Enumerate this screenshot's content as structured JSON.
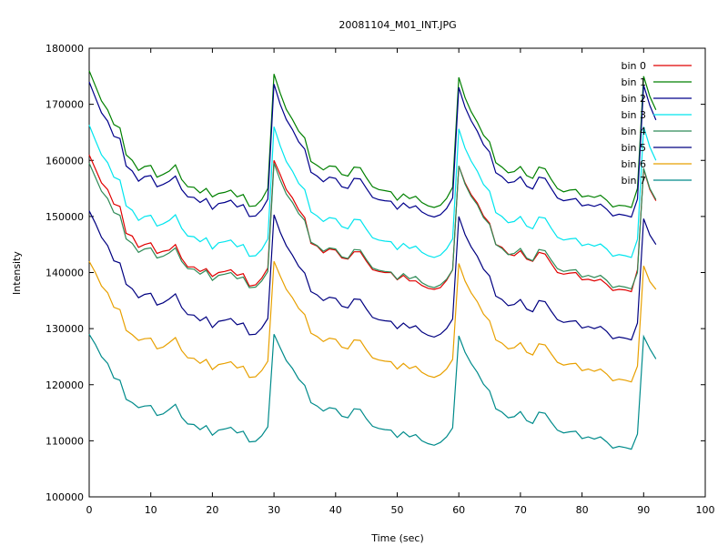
{
  "chart_data": {
    "type": "line",
    "title": "20081104_M01_INT.JPG",
    "xlabel": "Time (sec)",
    "ylabel": "Intensity",
    "xlim": [
      0,
      100
    ],
    "ylim": [
      100000,
      180000
    ],
    "xticks": [
      0,
      10,
      20,
      30,
      40,
      50,
      60,
      70,
      80,
      90,
      100
    ],
    "yticks": [
      100000,
      110000,
      120000,
      130000,
      140000,
      150000,
      160000,
      170000,
      180000
    ],
    "grid": false,
    "legend_position": "top-right",
    "x": [
      0,
      1,
      2,
      3,
      4,
      5,
      6,
      7,
      8,
      9,
      10,
      11,
      12,
      13,
      14,
      15,
      16,
      17,
      18,
      19,
      20,
      21,
      22,
      23,
      24,
      25,
      26,
      27,
      28,
      29,
      30,
      31,
      32,
      33,
      34,
      35,
      36,
      37,
      38,
      39,
      40,
      41,
      42,
      43,
      44,
      45,
      46,
      47,
      48,
      49,
      50,
      51,
      52,
      53,
      54,
      55,
      56,
      57,
      58,
      59,
      60,
      61,
      62,
      63,
      64,
      65,
      66,
      67,
      68,
      69,
      70,
      71,
      72,
      73,
      74,
      75,
      76,
      77,
      78,
      79,
      80,
      81,
      82,
      83,
      84,
      85,
      86,
      87,
      88,
      89,
      90,
      91,
      92
    ],
    "series": [
      {
        "name": "bin 0",
        "color": "#e00000",
        "values": [
          161000,
          158500,
          156000,
          154800,
          152200,
          151800,
          147000,
          146500,
          144500,
          145000,
          145300,
          143400,
          143800,
          144000,
          145000,
          142500,
          141000,
          141000,
          140200,
          140700,
          139300,
          140000,
          140200,
          140500,
          139500,
          139800,
          137600,
          137800,
          139000,
          140800,
          160000,
          157500,
          154800,
          153300,
          151200,
          149800,
          145200,
          144700,
          143500,
          144200,
          144000,
          142600,
          142400,
          143700,
          143700,
          142000,
          140500,
          140200,
          140000,
          140000,
          138700,
          139500,
          138500,
          138500,
          137700,
          137200,
          137000,
          137300,
          138600,
          140500,
          159000,
          156000,
          153900,
          152400,
          150100,
          148800,
          145000,
          144500,
          143300,
          143000,
          143900,
          142400,
          142000,
          143600,
          143300,
          141600,
          140000,
          139700,
          139900,
          140000,
          138700,
          138800,
          138500,
          138800,
          137900,
          136800,
          137000,
          136900,
          136600,
          140500,
          158400,
          154800,
          152800
        ]
      },
      {
        "name": "bin 1",
        "color": "#008000",
        "values": [
          176000,
          173300,
          170600,
          169000,
          166400,
          165800,
          161000,
          160000,
          158200,
          158900,
          159100,
          157000,
          157500,
          158100,
          159200,
          156600,
          155300,
          155200,
          154200,
          155000,
          153500,
          154100,
          154300,
          154700,
          153500,
          153900,
          151800,
          151900,
          153000,
          155000,
          175400,
          172000,
          169100,
          167300,
          165200,
          164000,
          159800,
          159100,
          158300,
          159000,
          158900,
          157500,
          157200,
          158800,
          158700,
          156900,
          155300,
          154800,
          154600,
          154400,
          152900,
          154000,
          153200,
          153600,
          152500,
          151900,
          151600,
          152000,
          153200,
          155200,
          174800,
          171200,
          168700,
          166800,
          164500,
          163300,
          159600,
          158800,
          157800,
          158000,
          158900,
          157300,
          156800,
          158800,
          158500,
          156600,
          155000,
          154400,
          154700,
          154800,
          153500,
          153700,
          153400,
          153800,
          152900,
          151700,
          152000,
          151900,
          151600,
          155000,
          175000,
          171400,
          169000
        ]
      },
      {
        "name": "bin 2",
        "color": "#00008b",
        "values": [
          174000,
          171200,
          168500,
          167000,
          164300,
          163900,
          159000,
          158100,
          156300,
          157100,
          157300,
          155300,
          155700,
          156300,
          157200,
          154800,
          153500,
          153400,
          152500,
          153200,
          151300,
          152300,
          152500,
          152900,
          151700,
          152100,
          150000,
          150100,
          151200,
          153100,
          173600,
          170000,
          167300,
          165500,
          163300,
          162000,
          157900,
          157200,
          156200,
          157000,
          156800,
          155300,
          155000,
          156800,
          156700,
          155000,
          153400,
          153000,
          152800,
          152700,
          151300,
          152400,
          151500,
          151900,
          150800,
          150200,
          149900,
          150300,
          151400,
          153300,
          173000,
          169500,
          167100,
          165200,
          162800,
          161500,
          157800,
          157100,
          156000,
          156200,
          157100,
          155400,
          154900,
          157000,
          156800,
          155000,
          153300,
          152800,
          153000,
          153200,
          151900,
          152100,
          151800,
          152200,
          151300,
          150100,
          150400,
          150200,
          149900,
          153100,
          173400,
          169800,
          167200
        ]
      },
      {
        "name": "bin 3",
        "color": "#00e5ee",
        "values": [
          166300,
          163600,
          161000,
          159600,
          157000,
          156500,
          151900,
          151100,
          149300,
          150000,
          150200,
          148300,
          148700,
          149300,
          150300,
          147900,
          146500,
          146400,
          145500,
          146200,
          144200,
          145300,
          145500,
          145800,
          144600,
          145000,
          142900,
          143000,
          144100,
          146000,
          166000,
          162600,
          159800,
          158100,
          155900,
          154800,
          150800,
          150100,
          149100,
          149800,
          149600,
          148200,
          147800,
          149500,
          149400,
          147700,
          146200,
          145800,
          145600,
          145500,
          144100,
          145200,
          144300,
          144700,
          143600,
          143000,
          142700,
          143100,
          144200,
          146000,
          165600,
          162200,
          159900,
          158100,
          155700,
          154500,
          150700,
          150000,
          148900,
          149100,
          150000,
          148300,
          147800,
          149900,
          149700,
          147900,
          146300,
          145800,
          146000,
          146100,
          144800,
          145100,
          144700,
          145100,
          144200,
          142900,
          143200,
          143000,
          142700,
          145900,
          166000,
          162400,
          160000
        ]
      },
      {
        "name": "bin 4",
        "color": "#2e8b57",
        "values": [
          159500,
          157000,
          154500,
          153200,
          150700,
          150200,
          146000,
          145200,
          143600,
          144200,
          144400,
          142600,
          142900,
          143500,
          144400,
          142000,
          140700,
          140600,
          139700,
          140400,
          138600,
          139500,
          139700,
          140000,
          138900,
          139200,
          137300,
          137400,
          138500,
          140200,
          159500,
          156500,
          154000,
          152500,
          150500,
          149300,
          145400,
          144800,
          143800,
          144400,
          144200,
          142800,
          142500,
          144100,
          144000,
          142300,
          140800,
          140400,
          140200,
          140100,
          138800,
          139800,
          138900,
          139300,
          138200,
          137600,
          137300,
          137800,
          138800,
          140500,
          159000,
          155800,
          153600,
          152100,
          149800,
          148600,
          145000,
          144300,
          143200,
          143400,
          144300,
          142600,
          142100,
          144100,
          143900,
          142200,
          140700,
          140200,
          140400,
          140500,
          139200,
          139500,
          139100,
          139500,
          138600,
          137300,
          137600,
          137400,
          137100,
          140000,
          158600,
          155000,
          153000
        ]
      },
      {
        "name": "bin 5",
        "color": "#000080",
        "values": [
          151000,
          148800,
          146300,
          144800,
          142100,
          141700,
          137900,
          137100,
          135500,
          136100,
          136300,
          134200,
          134600,
          135300,
          136200,
          133800,
          132500,
          132400,
          131400,
          132100,
          130200,
          131300,
          131500,
          131800,
          130700,
          131000,
          128900,
          129000,
          130100,
          131800,
          150300,
          147200,
          144800,
          143100,
          141100,
          139900,
          136600,
          136000,
          135000,
          135600,
          135400,
          134000,
          133700,
          135300,
          135200,
          133500,
          132000,
          131600,
          131400,
          131300,
          130000,
          131000,
          130100,
          130500,
          129400,
          128800,
          128500,
          129000,
          130000,
          131700,
          150000,
          146800,
          144600,
          142900,
          140600,
          139400,
          135800,
          135200,
          134100,
          134300,
          135200,
          133500,
          133000,
          135000,
          134800,
          133100,
          131600,
          131100,
          131300,
          131400,
          130100,
          130400,
          130000,
          130400,
          129500,
          128200,
          128500,
          128300,
          128000,
          131000,
          149600,
          146700,
          145000
        ]
      },
      {
        "name": "bin 6",
        "color": "#e8a000",
        "values": [
          142000,
          140000,
          137600,
          136400,
          133800,
          133400,
          129700,
          128900,
          127900,
          128200,
          128300,
          126400,
          126700,
          127500,
          128400,
          126100,
          124800,
          124700,
          123800,
          124500,
          122700,
          123600,
          123800,
          124100,
          123000,
          123300,
          121300,
          121400,
          122500,
          124200,
          142000,
          139400,
          137000,
          135500,
          133600,
          132500,
          129200,
          128600,
          127700,
          128300,
          128100,
          126700,
          126400,
          128000,
          127900,
          126200,
          124800,
          124400,
          124200,
          124100,
          122800,
          123800,
          122900,
          123300,
          122200,
          121600,
          121300,
          121800,
          122800,
          124500,
          141600,
          138500,
          136400,
          134800,
          132600,
          131400,
          128000,
          127400,
          126400,
          126600,
          127500,
          125800,
          125300,
          127300,
          127100,
          125500,
          124000,
          123500,
          123700,
          123800,
          122500,
          122800,
          122400,
          122800,
          121900,
          120700,
          121000,
          120800,
          120500,
          123300,
          141200,
          138400,
          137000
        ]
      },
      {
        "name": "bin 7",
        "color": "#008b8b",
        "values": [
          129000,
          127200,
          125000,
          123800,
          121200,
          120800,
          117400,
          116800,
          115900,
          116200,
          116300,
          114500,
          114800,
          115600,
          116500,
          114200,
          113000,
          112900,
          112000,
          112700,
          111000,
          111900,
          112100,
          112400,
          111400,
          111700,
          109800,
          109900,
          110900,
          112500,
          129000,
          126600,
          124300,
          122900,
          121000,
          119900,
          116800,
          116200,
          115300,
          115900,
          115700,
          114400,
          114100,
          115700,
          115600,
          113900,
          112600,
          112200,
          112000,
          111900,
          110600,
          111600,
          110700,
          111100,
          110000,
          109500,
          109200,
          109700,
          110700,
          112300,
          128700,
          125800,
          123800,
          122200,
          120100,
          118900,
          115700,
          115100,
          114100,
          114300,
          115200,
          113600,
          113100,
          115100,
          114900,
          113300,
          111900,
          111400,
          111600,
          111700,
          110400,
          110700,
          110300,
          110700,
          109800,
          108700,
          109000,
          108800,
          108500,
          111200,
          128600,
          126400,
          124600
        ]
      }
    ]
  }
}
